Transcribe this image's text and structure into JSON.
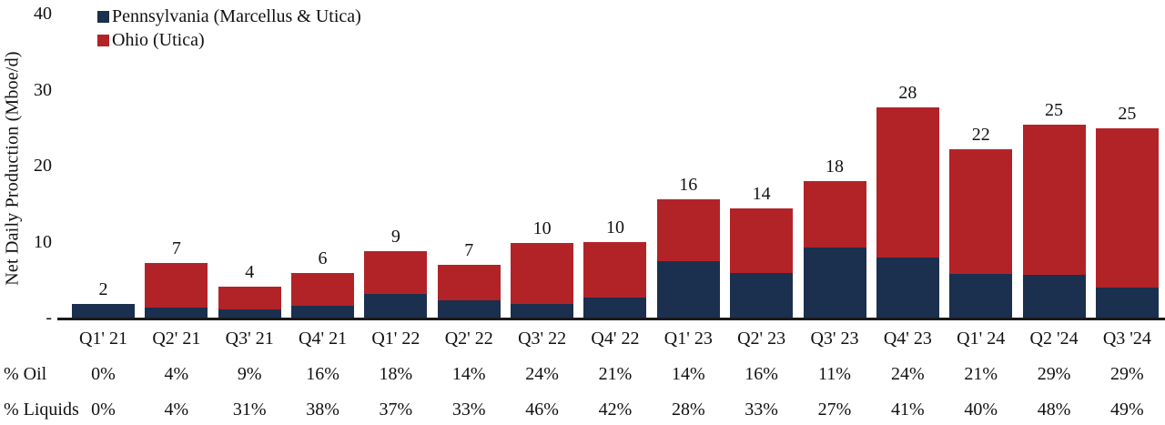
{
  "chart_data": {
    "type": "bar",
    "stacked": true,
    "title": "",
    "ylabel": "Net Daily Production (Mboe/d)",
    "xlabel": "",
    "ylim": [
      0,
      40
    ],
    "grid": false,
    "legend_position": "top-left",
    "yticks": [
      {
        "value": 40,
        "label": "40"
      },
      {
        "value": 30,
        "label": "30"
      },
      {
        "value": 20,
        "label": "20"
      },
      {
        "value": 10,
        "label": "10"
      },
      {
        "value": 0,
        "label": "-"
      }
    ],
    "categories": [
      "Q1' 21",
      "Q2' 21",
      "Q3' 21",
      "Q4' 21",
      "Q1' 22",
      "Q2' 22",
      "Q3' 22",
      "Q4' 22",
      "Q1' 23",
      "Q2' 23",
      "Q3' 23",
      "Q4' 23",
      "Q1' 24",
      "Q2 '24",
      "Q3 '24"
    ],
    "series": [
      {
        "name": "Pennsylvania (Marcellus & Utica)",
        "color": "#1B2F4E",
        "values": [
          1.8,
          1.3,
          1.1,
          1.6,
          3.1,
          2.3,
          1.8,
          2.6,
          7.4,
          5.9,
          9.2,
          7.9,
          5.8,
          5.6,
          3.9
        ]
      },
      {
        "name": "Ohio (Utica)",
        "color": "#B22328",
        "values": [
          0.0,
          5.9,
          3.0,
          4.3,
          5.6,
          4.7,
          8.0,
          7.3,
          8.2,
          8.5,
          8.8,
          19.8,
          16.3,
          19.8,
          21.0
        ]
      }
    ],
    "total_labels": [
      "2",
      "7",
      "4",
      "6",
      "9",
      "7",
      "10",
      "10",
      "16",
      "14",
      "18",
      "28",
      "22",
      "25",
      "25"
    ],
    "pct_oil": {
      "label": "% Oil",
      "values": [
        "0%",
        "4%",
        "9%",
        "16%",
        "18%",
        "14%",
        "24%",
        "21%",
        "14%",
        "16%",
        "11%",
        "24%",
        "21%",
        "29%",
        "29%"
      ]
    },
    "pct_liquids": {
      "label": "% Liquids",
      "values": [
        "0%",
        "4%",
        "31%",
        "38%",
        "37%",
        "33%",
        "46%",
        "42%",
        "28%",
        "33%",
        "27%",
        "41%",
        "40%",
        "48%",
        "49%"
      ]
    }
  }
}
